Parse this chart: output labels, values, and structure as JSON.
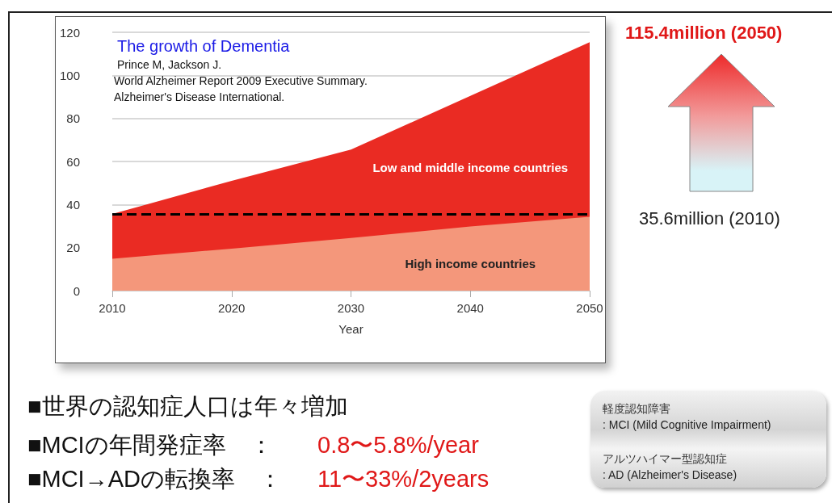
{
  "chart_data": {
    "type": "area",
    "title": "The growth of Dementia",
    "subtitle": "Prince M, Jackson J.",
    "xlabel": "Year",
    "x": [
      2010,
      2020,
      2030,
      2040,
      2050
    ],
    "series": [
      {
        "name": "High income countries",
        "color": "#f4977b",
        "values": [
          14.8,
          19.5,
          24.5,
          29.8,
          34.3
        ]
      },
      {
        "name": "Low and middle income countries",
        "color": "#ea2b23",
        "values": [
          20.8,
          31.5,
          41,
          60.7,
          81.1
        ]
      }
    ],
    "stacked": true,
    "xlim": [
      2010,
      2050
    ],
    "xticks": [
      2010,
      2020,
      2030,
      2040,
      2050
    ],
    "ylim": [
      0,
      120
    ],
    "yticks": [
      0,
      20,
      40,
      60,
      80,
      100,
      120
    ],
    "grid": "y",
    "legend": false,
    "ref_lines": [
      {
        "axis": "y",
        "value": 35.6,
        "color": "#000000",
        "line_style": "dashed"
      }
    ],
    "annotations": [
      "World Alzheimer Report 2009 Executive Summary.",
      "Alzheimer's Disease International.",
      "115.4million (2050)",
      "35.6million (2010)",
      "■世界の認知症人口は年々増加",
      "■MCIの年間発症率　：",
      "0.8〜5.8%/year",
      "■MCI→ADの転換率　：",
      "11〜33%/2years",
      "軽度認知障害",
      ": MCI (Mild Cognitive Impairment)",
      "アルツハイマー型認知症",
      ": AD (Alzheimer's Disease)"
    ]
  }
}
